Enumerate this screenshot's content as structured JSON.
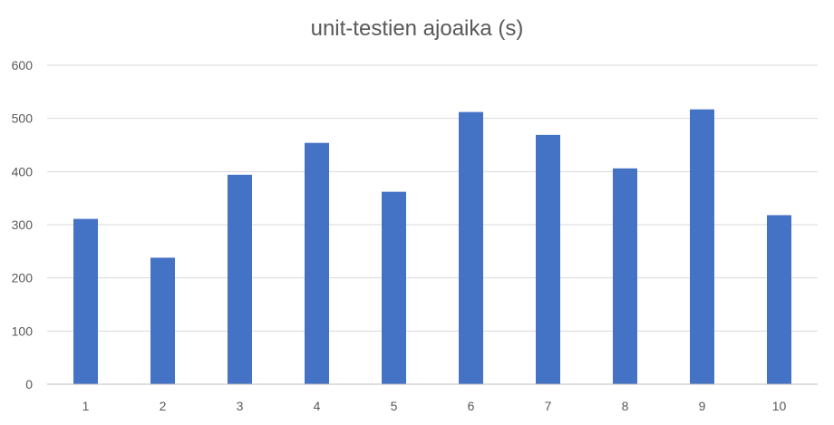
{
  "chart_data": {
    "type": "bar",
    "title": "unit-testien ajoaika (s)",
    "xlabel": "",
    "ylabel": "",
    "categories": [
      "1",
      "2",
      "3",
      "4",
      "5",
      "6",
      "7",
      "8",
      "9",
      "10"
    ],
    "values": [
      311,
      238,
      394,
      454,
      362,
      512,
      469,
      406,
      517,
      318
    ],
    "ylim": [
      0,
      600
    ],
    "yticks": [
      0,
      100,
      200,
      300,
      400,
      500,
      600
    ],
    "grid": true,
    "legend": "none",
    "colors": {
      "bar": "#4472C4",
      "grid": "#D9D9D9",
      "axis": "#BFBFBF",
      "text": "#595959"
    }
  }
}
